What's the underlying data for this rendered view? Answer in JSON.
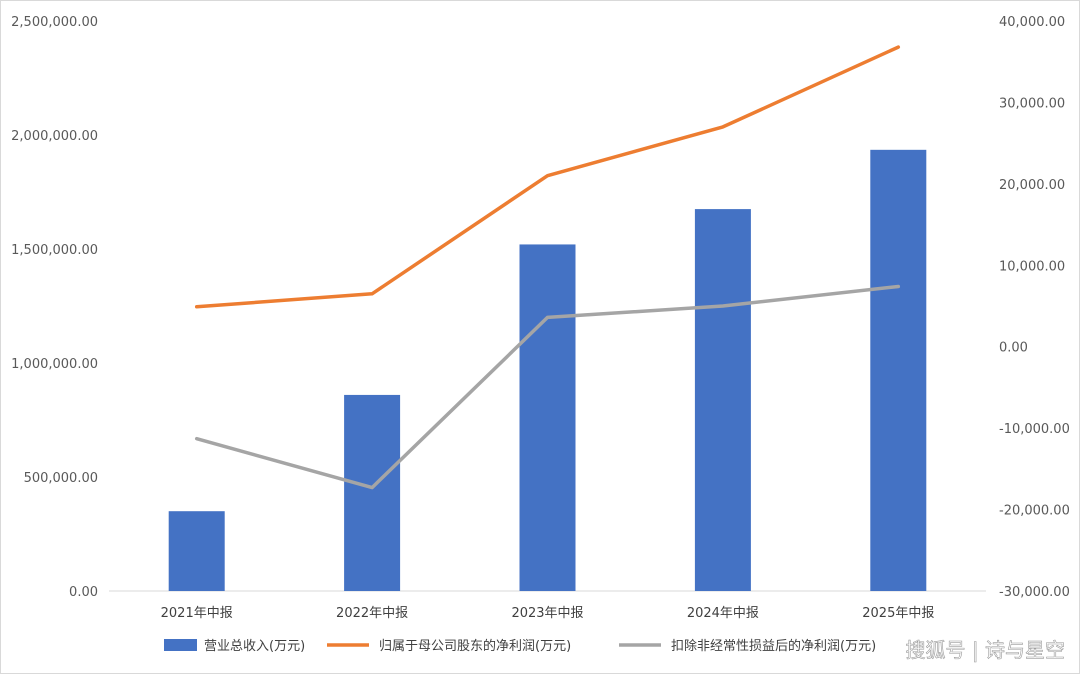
{
  "chart_data": {
    "type": "bar+line",
    "categories": [
      "2021年中报",
      "2022年中报",
      "2023年中报",
      "2024年中报",
      "2025年中报"
    ],
    "series": [
      {
        "name": "营业总收入(万元)",
        "kind": "bar",
        "axis": "left",
        "color": "#4472C4",
        "values": [
          350000,
          860000,
          1520000,
          1675000,
          1935000
        ]
      },
      {
        "name": "归属于母公司股东的净利润(万元)",
        "kind": "line",
        "axis": "right",
        "color": "#ED7D31",
        "values": [
          4900,
          6500,
          21000,
          27000,
          36800
        ]
      },
      {
        "name": "扣除非经常性损益后的净利润(万元)",
        "kind": "line",
        "axis": "right",
        "color": "#A5A5A5",
        "values": [
          -11300,
          -17300,
          3600,
          5000,
          7400
        ]
      }
    ],
    "y_left": {
      "min": 0,
      "max": 2500000,
      "ticks": [
        {
          "v": 0,
          "label": "0.00"
        },
        {
          "v": 500000,
          "label": "500,000.00"
        },
        {
          "v": 1000000,
          "label": "1,000,000.00"
        },
        {
          "v": 1500000,
          "label": "1,500,000.00"
        },
        {
          "v": 2000000,
          "label": "2,000,000.00"
        },
        {
          "v": 2500000,
          "label": "2,500,000.00"
        }
      ]
    },
    "y_right": {
      "min": -30000,
      "max": 40000,
      "ticks": [
        {
          "v": -30000,
          "label": "-30,000.00"
        },
        {
          "v": -20000,
          "label": "-20,000.00"
        },
        {
          "v": -10000,
          "label": "-10,000.00"
        },
        {
          "v": 0,
          "label": "0.00"
        },
        {
          "v": 10000,
          "label": "10,000.00"
        },
        {
          "v": 20000,
          "label": "20,000.00"
        },
        {
          "v": 30000,
          "label": "30,000.00"
        },
        {
          "v": 40000,
          "label": "40,000.00"
        }
      ]
    },
    "grid": false,
    "legend_position": "bottom"
  },
  "watermark": {
    "text": "搜狐号 | 诗与星空"
  }
}
